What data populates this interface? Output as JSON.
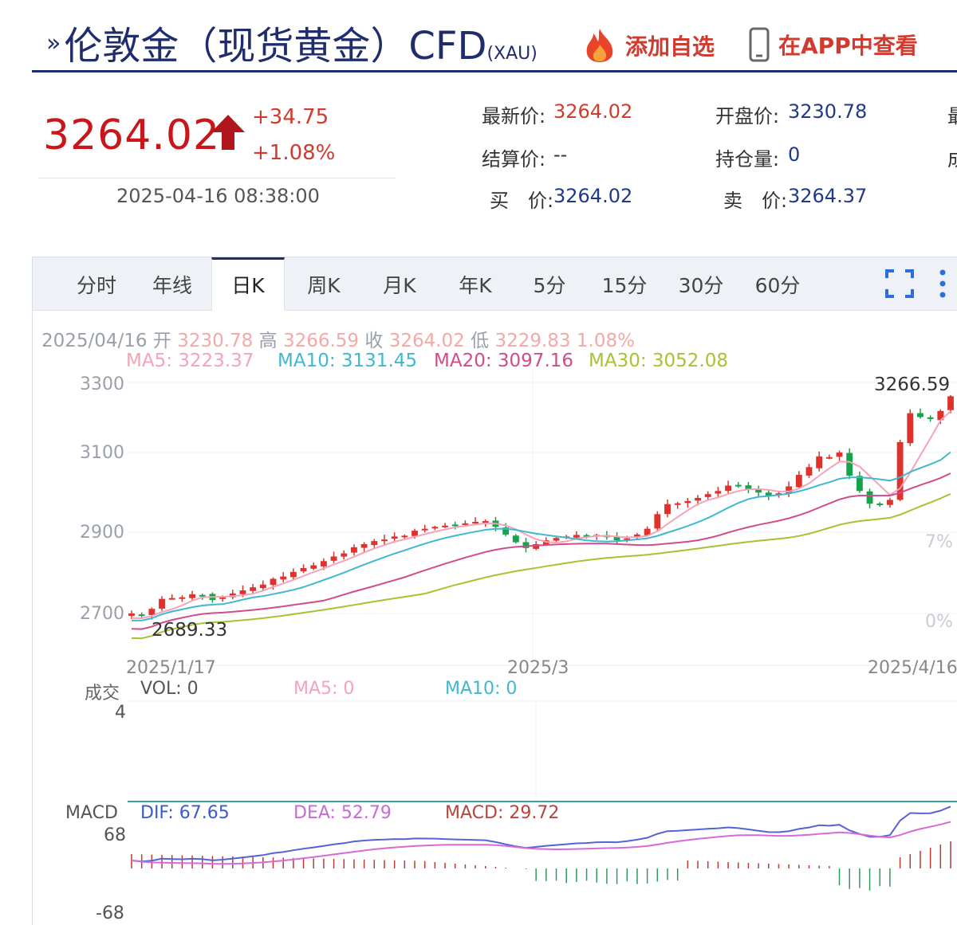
{
  "header": {
    "title": "伦敦金（现货黄金）CFD",
    "symbol": "(XAU)",
    "add_watch_label": "添加自选",
    "view_app_label": "在APP中查看",
    "title_arrow": "»"
  },
  "quote": {
    "price": "3264.02",
    "change": "+34.75",
    "change_pct": "+1.08%",
    "time": "2025-04-16 08:38:00",
    "fields": [
      {
        "label": "最新价:",
        "value": "3264.02"
      },
      {
        "label": "开盘价:",
        "value": "3230.78"
      },
      {
        "label": "结算价:",
        "value": "--"
      },
      {
        "label": "持仓量:",
        "value": "0"
      },
      {
        "label": "买　价:",
        "value": "3264.02"
      },
      {
        "label": "卖　价:",
        "value": "3264.37"
      }
    ],
    "cut_label_1": "最",
    "cut_label_2": "成"
  },
  "tabs": [
    "分时",
    "年线",
    "日K",
    "周K",
    "月K",
    "年K",
    "5分",
    "15分",
    "30分",
    "60分"
  ],
  "active_tab": "日K",
  "kline": {
    "date": "2025/04/16",
    "open_label": "开",
    "open": "3230.78",
    "high_label": "高",
    "high": "3266.59",
    "close_label": "收",
    "close": "3264.02",
    "low_label": "低",
    "low": "3229.83",
    "change_pct": "1.08%",
    "ma5": "MA5: 3223.37",
    "ma10": "MA10: 3131.45",
    "ma20": "MA20: 3097.16",
    "ma30": "MA30: 3052.08",
    "max_label": "3266.59",
    "min_label": "2689.33",
    "y_ticks": [
      "3300",
      "3100",
      "2900",
      "2700"
    ],
    "x_ticks": [
      "2025/1/17",
      "2025/3",
      "2025/4/16"
    ],
    "right_pct_1": "7%",
    "right_pct_2": "0%",
    "colors": {
      "up": "#e0322d",
      "down": "#16a34a",
      "ma5": "#f4a3b8",
      "ma10": "#3fb8d0",
      "ma20": "#d04c8a",
      "ma30": "#a8c232"
    }
  },
  "volume": {
    "title": "成交",
    "vol": "VOL: 0",
    "ma5": "MA5: 0",
    "ma10": "MA10: 0",
    "y_top": "4"
  },
  "macd": {
    "title": "MACD",
    "dif": "DIF: 67.65",
    "dea": "DEA: 52.79",
    "macd": "MACD: 29.72",
    "y_top": "68",
    "y_bottom": "-68"
  },
  "chart_data": {
    "type": "candlestick",
    "x_range": [
      "2025/1/17",
      "2025/4/16"
    ],
    "ylim": [
      2650,
      3320
    ],
    "last_candle": {
      "date": "2025/04/16",
      "open": 3230.78,
      "high": 3266.59,
      "close": 3264.02,
      "low": 3229.83
    },
    "period_high": 3266.59,
    "period_low": 2689.33,
    "closes_approx": [
      2700,
      2696,
      2712,
      2738,
      2740,
      2742,
      2750,
      2748,
      2735,
      2742,
      2752,
      2760,
      2768,
      2775,
      2790,
      2796,
      2808,
      2818,
      2825,
      2836,
      2848,
      2856,
      2872,
      2880,
      2888,
      2892,
      2900,
      2902,
      2915,
      2920,
      2925,
      2928,
      2930,
      2934,
      2938,
      2940,
      2925,
      2905,
      2885,
      2870,
      2880,
      2890,
      2896,
      2900,
      2904,
      2902,
      2904,
      2898,
      2890,
      2895,
      2905,
      2920,
      2958,
      2984,
      2986,
      2992,
      3000,
      3010,
      3018,
      3032,
      3030,
      3022,
      3014,
      3006,
      3012,
      3030,
      3060,
      3080,
      3108,
      3106,
      3118,
      3058,
      3018,
      2985,
      2982,
      2995,
      3145,
      3220,
      3210,
      3205,
      3226,
      3264
    ]
  }
}
